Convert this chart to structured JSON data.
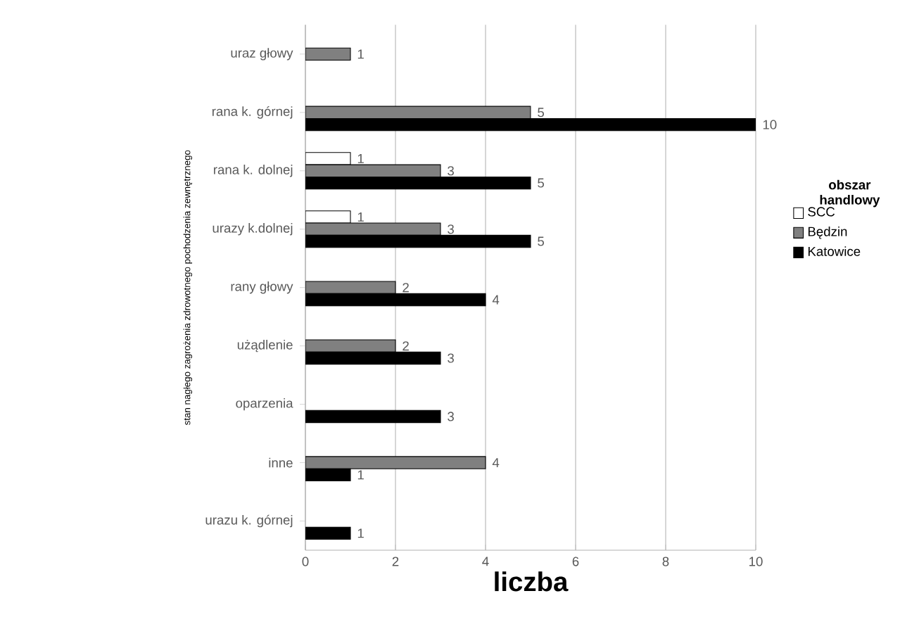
{
  "chart_data": {
    "type": "bar",
    "orientation": "horizontal",
    "xlabel": "liczba",
    "ylabel": "stan nagłego zagrożenia zdrowotnego pochodzenia zewnętrznego",
    "legend_title": "obszar handlowy",
    "categories": [
      "uraz głowy",
      "rana k. górnej",
      "rana k. dolnej",
      "urazy k.dolnej",
      "rany głowy",
      "użądlenie",
      "oparzenia",
      "inne",
      "urazu k. górnej"
    ],
    "series": [
      {
        "name": "SCC",
        "color": "#ffffff",
        "values": [
          null,
          null,
          1,
          1,
          null,
          null,
          null,
          null,
          null
        ]
      },
      {
        "name": "Będzin",
        "color": "#808080",
        "values": [
          1,
          5,
          3,
          3,
          2,
          2,
          null,
          4,
          null
        ]
      },
      {
        "name": "Katowice",
        "color": "#000000",
        "values": [
          null,
          10,
          5,
          5,
          4,
          3,
          3,
          1,
          1
        ]
      }
    ],
    "xlim": [
      0,
      10
    ],
    "xticks": [
      0,
      2,
      4,
      6,
      8,
      10
    ],
    "grid": "x",
    "legend": "right",
    "data_labels": true
  }
}
